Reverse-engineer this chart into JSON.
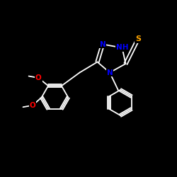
{
  "background_color": "#000000",
  "bond_color": "#ffffff",
  "atom_colors": {
    "N": "#0000ff",
    "S": "#ffa500",
    "O": "#ff0000",
    "C": "#ffffff",
    "H": "#ffffff"
  },
  "figsize": [
    2.5,
    2.5
  ],
  "dpi": 100
}
